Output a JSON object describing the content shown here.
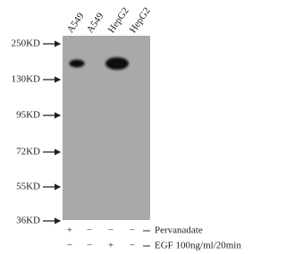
{
  "lanes": [
    "A549",
    "A549",
    "HepG2",
    "HepG2"
  ],
  "markers": [
    "250KD",
    "130KD",
    "95KD",
    "72KD",
    "55KD",
    "36KD"
  ],
  "treatments": [
    {
      "name": "Pervanadate",
      "signs": [
        "+",
        "−",
        "−",
        "−"
      ]
    },
    {
      "name": "EGF 100ng/ml/20min",
      "signs": [
        "−",
        "−",
        "+",
        "−"
      ]
    }
  ]
}
